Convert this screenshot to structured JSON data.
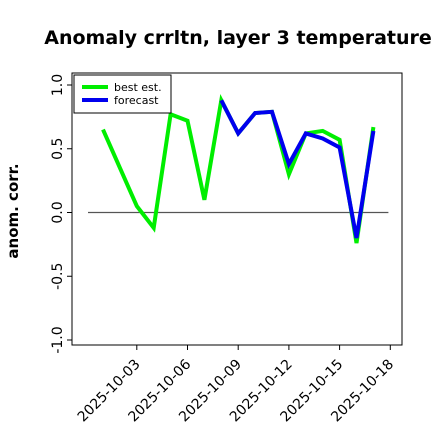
{
  "chart_data": {
    "type": "line",
    "title": "Anomaly crrltn, layer 3 temperature",
    "xlabel": "",
    "ylabel": "anom. corr.",
    "ylim": [
      -1.0,
      1.0
    ],
    "yticks": [
      "-1.0",
      "-0.5",
      "0.0",
      "0.5",
      "1.0"
    ],
    "yticks_values": [
      -1.0,
      -0.5,
      0.0,
      0.5,
      1.0
    ],
    "xticks": [
      {
        "label": "2025-10-03",
        "color": "#000000"
      },
      {
        "label": "2025-10-06",
        "color": "#000000"
      },
      {
        "label": "2025-10-09",
        "color": "#2e8b2e"
      },
      {
        "label": "2025-10-12",
        "color": "#000000"
      },
      {
        "label": "2025-10-15",
        "color": "#000000"
      },
      {
        "label": "2025-10-18",
        "color": "#000000"
      }
    ],
    "reference_line": 0.0,
    "legend_position": "top-left",
    "grid": false,
    "series": [
      {
        "name": "best est.",
        "color": "#00ee00",
        "points": [
          [
            "2025-10-01",
            0.65
          ],
          [
            "2025-10-03",
            0.05
          ],
          [
            "2025-10-04",
            -0.12
          ],
          [
            "2025-10-05",
            0.77
          ],
          [
            "2025-10-06",
            0.72
          ],
          [
            "2025-10-07",
            0.1
          ],
          [
            "2025-10-08",
            0.88
          ],
          [
            "2025-10-09",
            0.62
          ],
          [
            "2025-10-10",
            0.78
          ],
          [
            "2025-10-11",
            0.79
          ],
          [
            "2025-10-12",
            0.3
          ],
          [
            "2025-10-13",
            0.62
          ],
          [
            "2025-10-14",
            0.64
          ],
          [
            "2025-10-15",
            0.57
          ],
          [
            "2025-10-16",
            -0.24
          ],
          [
            "2025-10-17",
            0.67
          ]
        ]
      },
      {
        "name": "forecast",
        "color": "#0000ee",
        "points": [
          [
            "2025-10-08",
            0.88
          ],
          [
            "2025-10-09",
            0.62
          ],
          [
            "2025-10-10",
            0.78
          ],
          [
            "2025-10-11",
            0.79
          ],
          [
            "2025-10-12",
            0.38
          ],
          [
            "2025-10-13",
            0.62
          ],
          [
            "2025-10-14",
            0.58
          ],
          [
            "2025-10-15",
            0.51
          ],
          [
            "2025-10-16",
            -0.2
          ],
          [
            "2025-10-17",
            0.64
          ]
        ]
      }
    ]
  }
}
